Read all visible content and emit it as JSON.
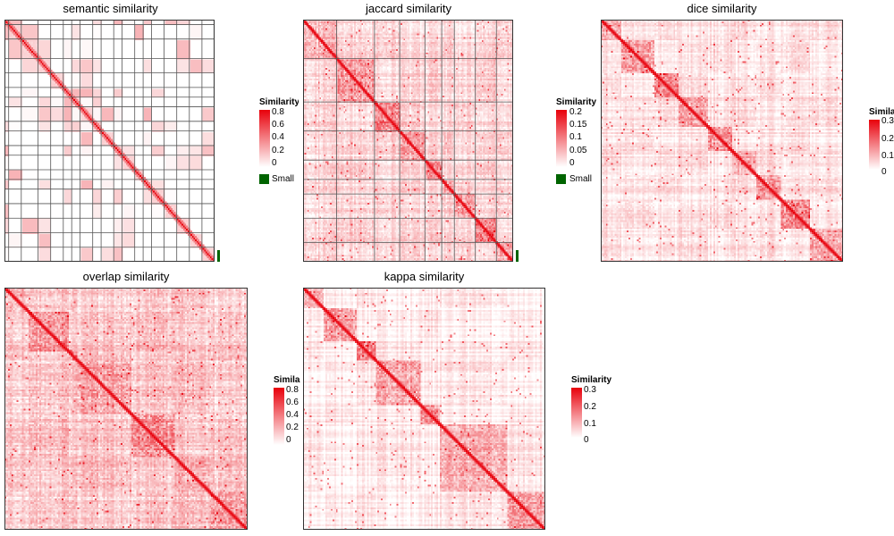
{
  "chart_data": [
    {
      "type": "heatmap",
      "title": "semantic similarity",
      "legend": {
        "title": "Similarity",
        "ticks": [
          "0.8",
          "0.6",
          "0.4",
          "0.2",
          "0"
        ],
        "range": [
          0,
          0.8
        ],
        "extra_item": "Small"
      },
      "colors": {
        "low": "#ffffff",
        "high": "#e8000b",
        "extra": "#006400"
      },
      "n": 140,
      "style": "blocks",
      "bias": 0.05
    },
    {
      "type": "heatmap",
      "title": "jaccard similarity",
      "legend": {
        "title": "Similarity",
        "ticks": [
          "0.2",
          "0.15",
          "0.1",
          "0.05",
          "0"
        ],
        "range": [
          0,
          0.2
        ],
        "extra_item": "Small"
      },
      "colors": {
        "low": "#ffffff",
        "high": "#e8000b",
        "extra": "#006400"
      },
      "n": 140,
      "style": "noisy",
      "bias": 0.15
    },
    {
      "type": "heatmap",
      "title": "dice similarity",
      "legend": {
        "title": "Similarity",
        "ticks": [
          "0.3",
          "0.2",
          "0.1",
          "0"
        ],
        "range": [
          0,
          0.3
        ]
      },
      "colors": {
        "low": "#ffffff",
        "high": "#e8000b"
      },
      "n": 140,
      "style": "noisy",
      "bias": 0.1
    },
    {
      "type": "heatmap",
      "title": "overlap similarity",
      "legend": {
        "title": "Similarity",
        "ticks": [
          "0.8",
          "0.6",
          "0.4",
          "0.2",
          "0"
        ],
        "range": [
          0,
          0.8
        ]
      },
      "colors": {
        "low": "#ffffff",
        "high": "#e8000b"
      },
      "n": 140,
      "style": "noisy",
      "bias": 0.22
    },
    {
      "type": "heatmap",
      "title": "kappa similarity",
      "legend": {
        "title": "Similarity",
        "ticks": [
          "0.3",
          "0.2",
          "0.1",
          "0"
        ],
        "range": [
          0,
          0.3
        ]
      },
      "colors": {
        "low": "#ffffff",
        "high": "#e8000b"
      },
      "n": 140,
      "style": "noisy",
      "bias": 0.05
    }
  ]
}
